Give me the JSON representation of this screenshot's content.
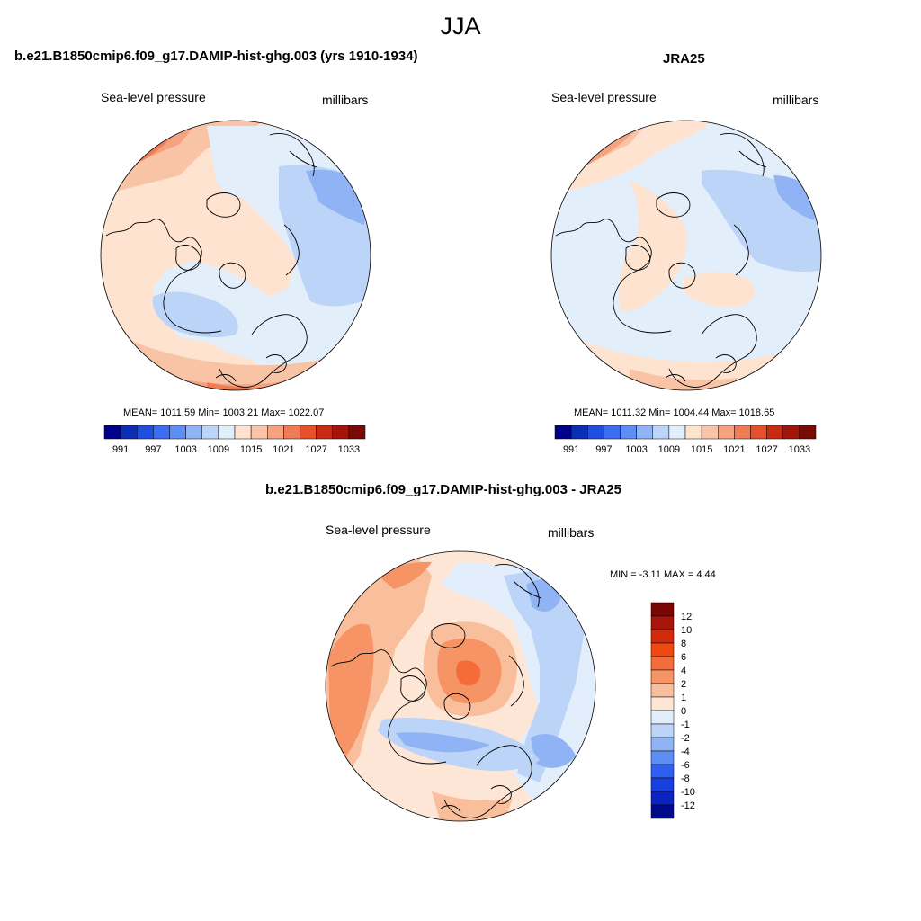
{
  "title": "JJA",
  "panels": [
    {
      "title": "b.e21.B1850cmip6.f09_g17.DAMIP-hist-ghg.003 (yrs 1910-1934)",
      "left_label": "Sea-level pressure",
      "right_label": "millibars",
      "stats": "MEAN= 1011.59  Min= 1003.21  Max= 1022.07",
      "colorbar_ticks": [
        "991",
        "997",
        "1003",
        "1009",
        "1015",
        "1021",
        "1027",
        "1033"
      ]
    },
    {
      "title": "JRA25",
      "left_label": "Sea-level pressure",
      "right_label": "millibars",
      "stats": "MEAN= 1011.32  Min= 1004.44  Max= 1018.65",
      "colorbar_ticks": [
        "991",
        "997",
        "1003",
        "1009",
        "1015",
        "1021",
        "1027",
        "1033"
      ]
    },
    {
      "title": "b.e21.B1850cmip6.f09_g17.DAMIP-hist-ghg.003 - JRA25",
      "left_label": "Sea-level pressure",
      "right_label": "millibars",
      "stats": "MIN =  -3.11 MAX =   4.44",
      "colorbar_ticks": [
        "12",
        "10",
        "8",
        "6",
        "4",
        "2",
        "1",
        "0",
        "-1",
        "-2",
        "-4",
        "-6",
        "-8",
        "-10",
        "-12"
      ]
    }
  ],
  "colors": {
    "abs_palette": [
      "#00008b",
      "#0a2fb5",
      "#1f4fe0",
      "#3b6ef2",
      "#5e8ef5",
      "#8fb3f5",
      "#bcd4f7",
      "#e3eefb",
      "#fde3d0",
      "#f9c4a6",
      "#f5a27f",
      "#f07c55",
      "#e6512b",
      "#c92b12",
      "#a3140a",
      "#7a0a05"
    ],
    "diff_palette": [
      "#7a0505",
      "#a8150a",
      "#d42a0c",
      "#ee4a10",
      "#f56b3a",
      "#f79466",
      "#f9bf9d",
      "#fde6d6",
      "#e2eefb",
      "#bcd4f7",
      "#8fb3f5",
      "#5e8ef5",
      "#2f5ff0",
      "#1a3fe0",
      "#0b23c0",
      "#000a8a"
    ],
    "land_outline": "#000000"
  }
}
